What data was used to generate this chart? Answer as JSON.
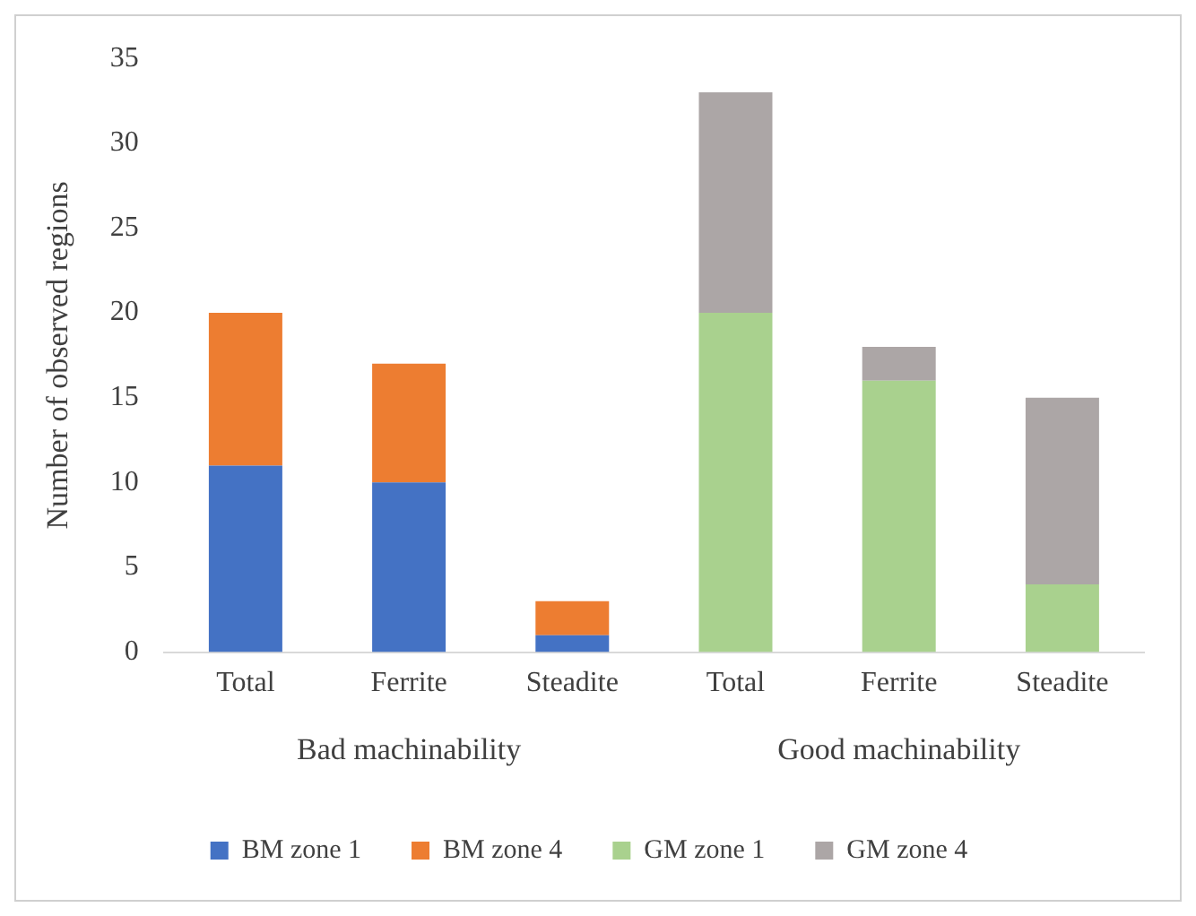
{
  "chart_data": {
    "type": "bar",
    "ylabel": "Number of observed regions",
    "categories": [
      "Total",
      "Ferrite",
      "Steadite",
      "Total",
      "Ferrite",
      "Steadite"
    ],
    "series": [
      {
        "name": "BM zone 1",
        "color": "#4472c4",
        "values": [
          11,
          10,
          1,
          null,
          null,
          null
        ]
      },
      {
        "name": "BM zone 4",
        "color": "#ed7d31",
        "values": [
          9,
          7,
          2,
          null,
          null,
          null
        ]
      },
      {
        "name": "GM zone 1",
        "color": "#a9d18e",
        "values": [
          null,
          null,
          null,
          20,
          16,
          4
        ]
      },
      {
        "name": "GM zone 4",
        "color": "#aca6a6",
        "values": [
          null,
          null,
          null,
          13,
          2,
          11
        ]
      }
    ],
    "stacked": true,
    "ylim": [
      0,
      35
    ],
    "yticks": [
      0,
      5,
      10,
      15,
      20,
      25,
      30,
      35
    ],
    "legend": "bottom",
    "annotations": [
      "Bad machinability",
      "Good machinability"
    ]
  }
}
